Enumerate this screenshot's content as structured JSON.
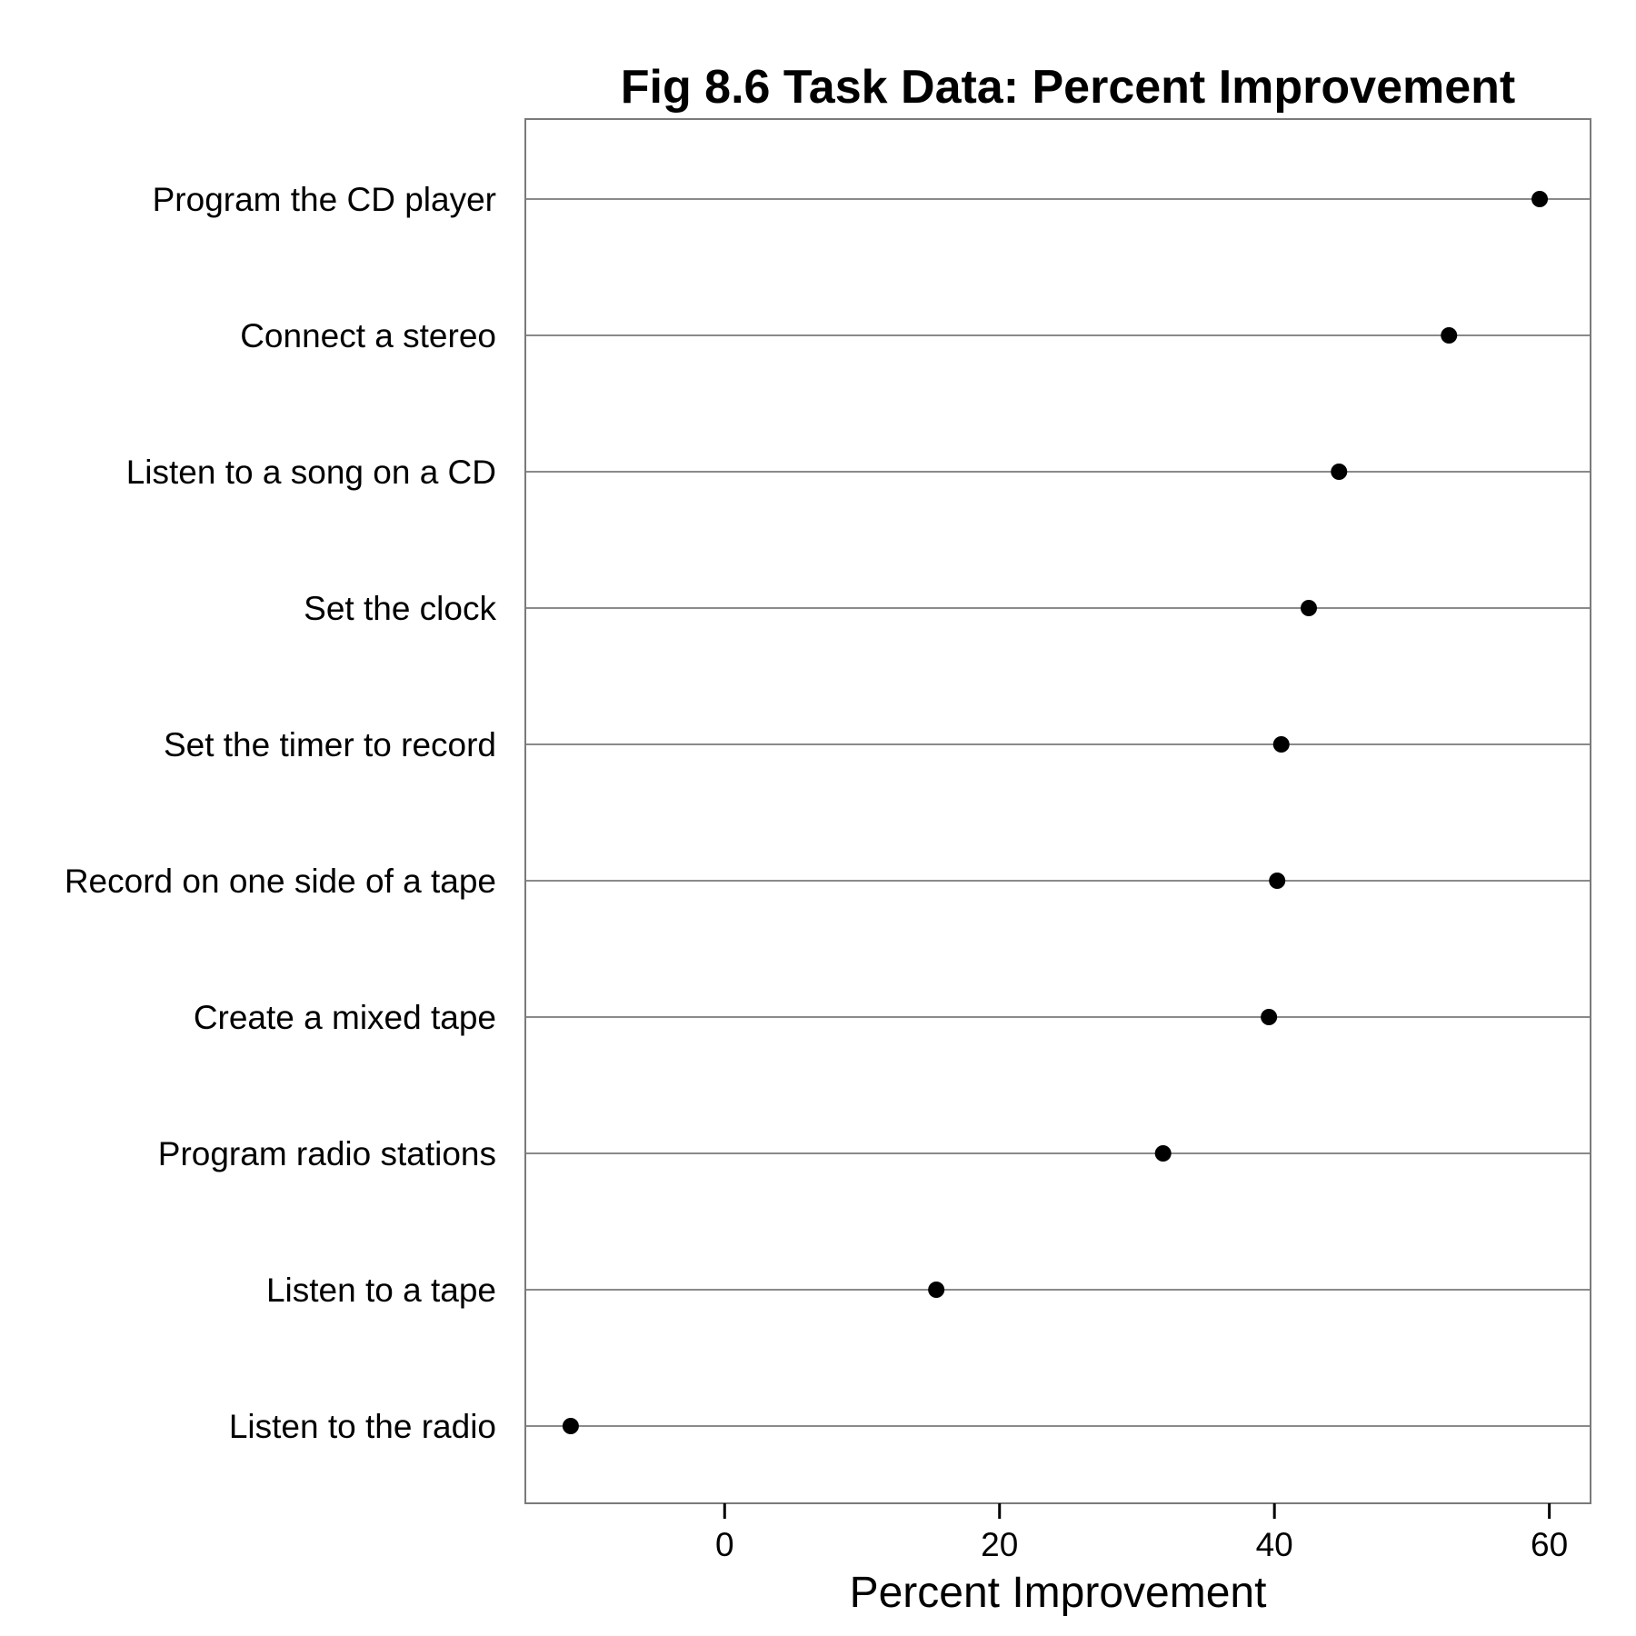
{
  "chart_data": {
    "type": "scatter",
    "title": "Fig 8.6 Task Data: Percent Improvement",
    "xlabel": "Percent Improvement",
    "ylabel": "",
    "xlim": [
      -14.5,
      63
    ],
    "xticks": [
      0,
      20,
      40,
      60
    ],
    "grid": "horizontal",
    "legend": "none",
    "categories": [
      "Program the CD player",
      "Connect a stereo",
      "Listen to a song on a CD",
      "Set the clock",
      "Set the timer to record",
      "Record on one side of a tape",
      "Create a mixed tape",
      "Program radio stations",
      "Listen to a tape",
      "Listen to the radio"
    ],
    "values": [
      59.3,
      52.7,
      44.7,
      42.5,
      40.5,
      40.2,
      39.6,
      31.9,
      15.4,
      -11.2
    ],
    "colors": {
      "point": "#000000",
      "grid": "#8a8a8a",
      "frame": "#7a7a7a"
    }
  }
}
